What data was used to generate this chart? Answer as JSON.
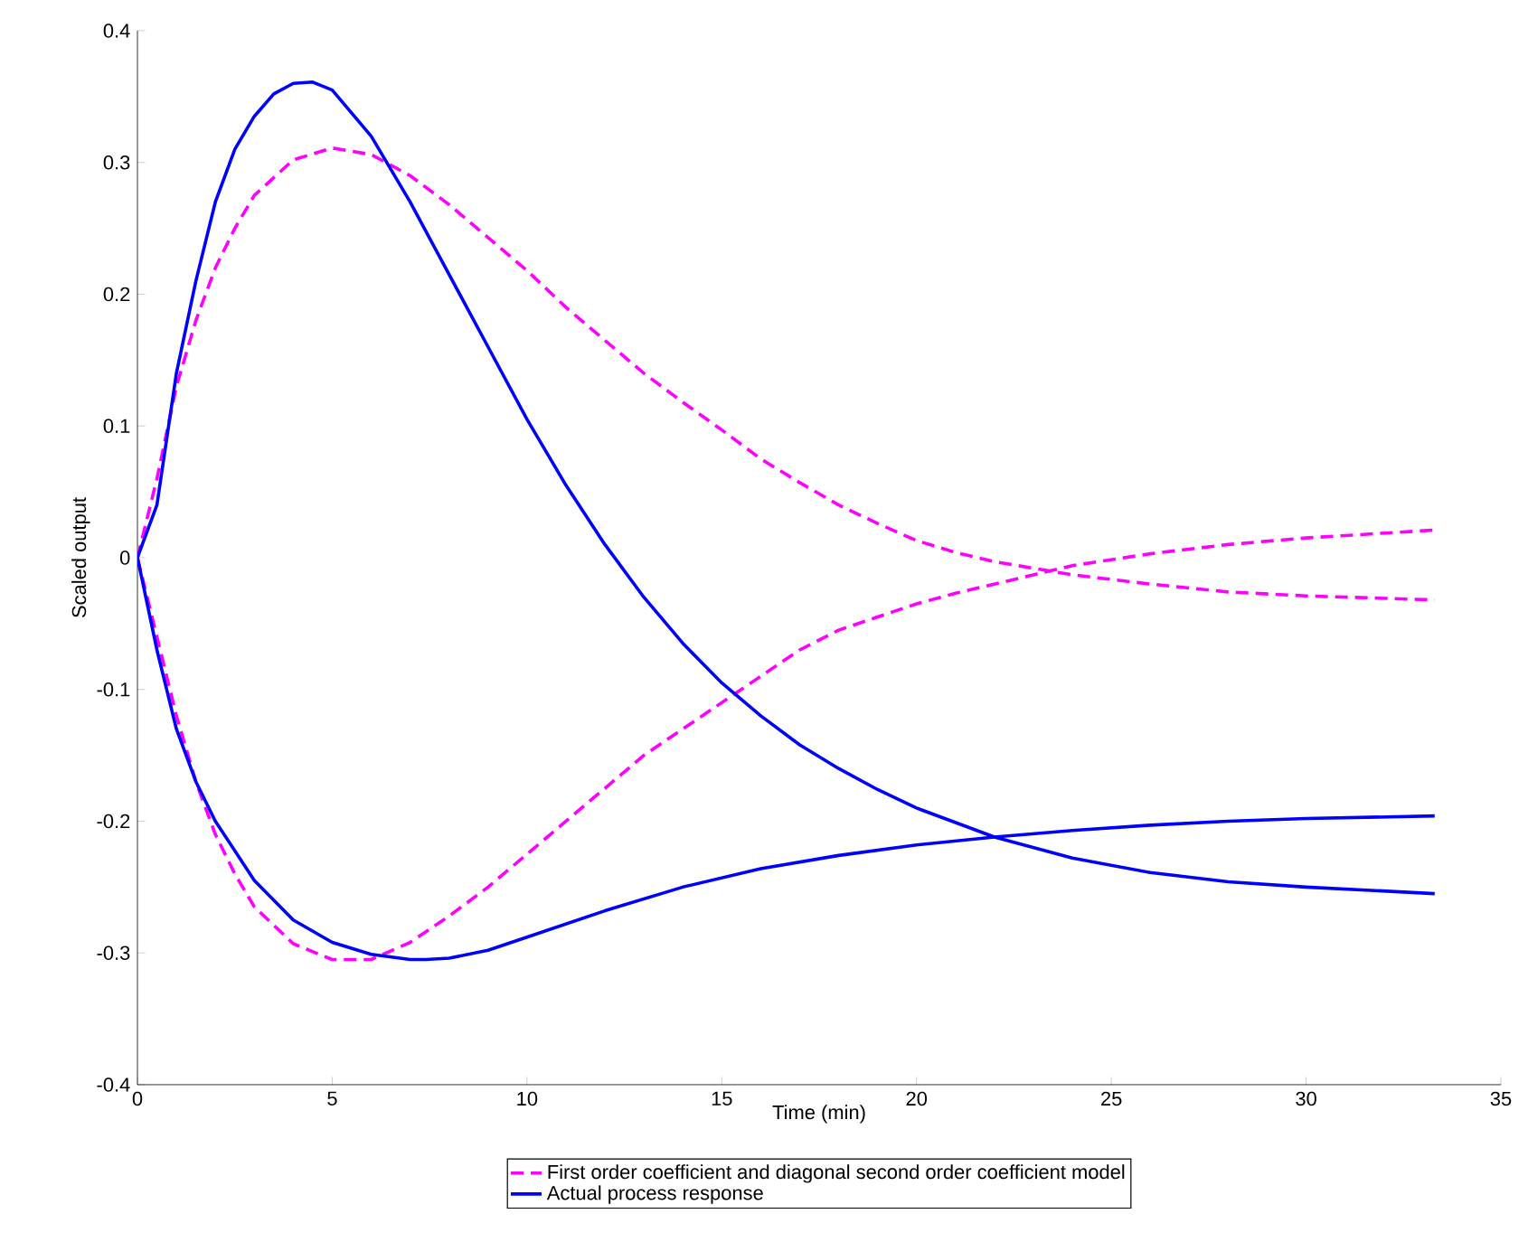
{
  "chart_data": {
    "type": "line",
    "xlabel": "Time (min)",
    "ylabel": "Scaled output",
    "xlim": [
      0,
      35
    ],
    "ylim": [
      -0.4,
      0.4
    ],
    "xticks": [
      0,
      5,
      10,
      15,
      20,
      25,
      30,
      35
    ],
    "yticks": [
      -0.4,
      -0.3,
      -0.2,
      -0.1,
      0,
      0.1,
      0.2,
      0.3,
      0.4
    ],
    "grid": false,
    "legend": "bottom",
    "series": [
      {
        "name": "First order coefficient and diagonal second order coefficient model",
        "color": "#ff00ff",
        "line_style": "dashed",
        "x": [
          0,
          0.5,
          1,
          1.5,
          2,
          2.5,
          3,
          4,
          5,
          6,
          7,
          8,
          9,
          10,
          11,
          12,
          13,
          14,
          15,
          16,
          17,
          18,
          19,
          20,
          21,
          22,
          23,
          24,
          26,
          28,
          30,
          33.3
        ],
        "values": [
          0,
          0.06,
          0.13,
          0.18,
          0.22,
          0.25,
          0.275,
          0.302,
          0.311,
          0.306,
          0.29,
          0.268,
          0.243,
          0.218,
          0.19,
          0.165,
          0.14,
          0.118,
          0.097,
          0.075,
          0.057,
          0.04,
          0.026,
          0.013,
          0.004,
          -0.003,
          -0.008,
          -0.013,
          -0.02,
          -0.026,
          -0.029,
          -0.032
        ]
      },
      {
        "color": "#ff00ff",
        "line_style": "dashed",
        "x": [
          0,
          0.5,
          1,
          1.5,
          2,
          2.5,
          3,
          4,
          5,
          6,
          7,
          8,
          9,
          10,
          11,
          12,
          13,
          14,
          15,
          16,
          17,
          18,
          19,
          20,
          21,
          22,
          23,
          24,
          26,
          28,
          30,
          33.3
        ],
        "values": [
          0,
          -0.06,
          -0.12,
          -0.17,
          -0.21,
          -0.24,
          -0.265,
          -0.293,
          -0.305,
          -0.305,
          -0.292,
          -0.272,
          -0.25,
          -0.225,
          -0.2,
          -0.175,
          -0.15,
          -0.13,
          -0.11,
          -0.09,
          -0.07,
          -0.055,
          -0.045,
          -0.035,
          -0.027,
          -0.02,
          -0.013,
          -0.006,
          0.003,
          0.01,
          0.015,
          0.021
        ]
      },
      {
        "name": "Actual process response",
        "color": "#0000ff",
        "line_style": "solid",
        "x": [
          0,
          0.5,
          1,
          1.5,
          2,
          2.5,
          3,
          3.5,
          4,
          4.5,
          5,
          6,
          7,
          8,
          9,
          10,
          11,
          12,
          13,
          14,
          15,
          16,
          17,
          18,
          19,
          20,
          22,
          24,
          26,
          28,
          30,
          33.3
        ],
        "values": [
          0,
          0.04,
          0.14,
          0.21,
          0.27,
          0.31,
          0.335,
          0.352,
          0.36,
          0.361,
          0.355,
          0.32,
          0.27,
          0.215,
          0.16,
          0.105,
          0.055,
          0.01,
          -0.03,
          -0.065,
          -0.095,
          -0.12,
          -0.142,
          -0.16,
          -0.176,
          -0.19,
          -0.212,
          -0.228,
          -0.239,
          -0.246,
          -0.25,
          -0.255
        ]
      },
      {
        "color": "#0000ff",
        "line_style": "solid",
        "x": [
          0,
          0.5,
          1,
          1.5,
          2,
          3,
          4,
          5,
          6,
          7,
          7.4,
          8,
          9,
          10,
          12,
          14,
          16,
          18,
          20,
          22,
          24,
          26,
          28,
          30,
          33.3
        ],
        "values": [
          0,
          -0.07,
          -0.13,
          -0.17,
          -0.2,
          -0.245,
          -0.275,
          -0.292,
          -0.301,
          -0.305,
          -0.305,
          -0.304,
          -0.298,
          -0.288,
          -0.268,
          -0.25,
          -0.236,
          -0.226,
          -0.218,
          -0.212,
          -0.207,
          -0.203,
          -0.2,
          -0.198,
          -0.196
        ]
      }
    ]
  }
}
